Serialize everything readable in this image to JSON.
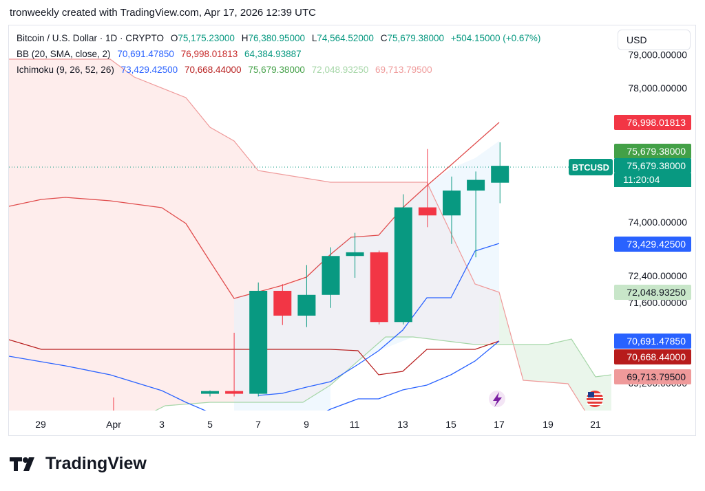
{
  "caption": "tronweekly created with TradingView.com, Apr 17, 2026 12:39 UTC",
  "brand": "TradingView",
  "currency_button": "USD",
  "legend": {
    "symbol": "Bitcoin / U.S. Dollar · 1D · CRYPTO",
    "open_label": "O",
    "open": "75,175.23000",
    "high_label": "H",
    "high": "76,380.95000",
    "low_label": "L",
    "low": "74,564.52000",
    "close_label": "C",
    "close": "75,679.38000",
    "change": "+504.15000 (+0.67%)",
    "bb_label": "BB (20, SMA, close, 2)",
    "bb_basis": "70,691.47850",
    "bb_upper": "76,998.01813",
    "bb_lower": "64,384.93887",
    "ichi_label": "Ichimoku (9, 26, 52, 26)",
    "ichi_conv": "73,429.42500",
    "ichi_base": "70,668.44000",
    "ichi_lag": "75,679.38000",
    "ichi_spanA": "72,048.93250",
    "ichi_spanB": "69,713.79500"
  },
  "colors": {
    "up": "#089981",
    "down": "#f23645",
    "bb_upper": "#e04c4c",
    "bb_basis": "#c2185b",
    "bb_lower": "#2962ff",
    "conv": "#2962ff",
    "base": "#b71c1c",
    "spanA": "#a5d6a7",
    "spanB": "#ef9a9a",
    "cloud_bear": "#fde7e5",
    "cloud_bull": "#e8f5e9"
  },
  "chart_data": {
    "type": "candlestick",
    "symbol_tag": "BTCUSD",
    "countdown": "11:20:04",
    "x_tick_labels": [
      "29",
      "Apr",
      "3",
      "5",
      "7",
      "9",
      "11",
      "13",
      "15",
      "17",
      "19",
      "21"
    ],
    "y_tick_labels": [
      "79,000.00000",
      "78,000.00000",
      "74,000.00000",
      "72,400.00000",
      "71,600.00000",
      "69,200.00000"
    ],
    "y_tick_values": [
      79000,
      78000,
      74000,
      72400,
      71600,
      69200
    ],
    "price_tags": [
      {
        "label": "76,998.01813",
        "value": 76998.01813,
        "color": "#f23645"
      },
      {
        "label": "75,679.38000",
        "value": 76000,
        "color": "#43a047"
      },
      {
        "label": "75,679.38000",
        "value": 75679.38,
        "color": "#089981"
      },
      {
        "label": "73,429.42500",
        "value": 73429.425,
        "color": "#2962ff"
      },
      {
        "label": "72,048.93250",
        "value": 72048.9325,
        "color": "#c8e6c9"
      },
      {
        "label": "70,691.47850",
        "value": 70691.4785,
        "color": "#2962ff"
      },
      {
        "label": "70,668.44000",
        "value": 70668.44,
        "color": "#b71c1c"
      },
      {
        "label": "69,713.79500",
        "value": 69713.795,
        "color": "#ef9a9a"
      }
    ],
    "candles": [
      {
        "date": "Apr 5",
        "open": 68880,
        "high": 68980,
        "low": 68800,
        "close": 68960
      },
      {
        "date": "Apr 6",
        "open": 68960,
        "high": 70700,
        "low": 68800,
        "close": 68880
      },
      {
        "date": "Apr 7",
        "open": 68880,
        "high": 72200,
        "low": 68800,
        "close": 71950
      },
      {
        "date": "Apr 8",
        "open": 71950,
        "high": 72150,
        "low": 70930,
        "close": 71210
      },
      {
        "date": "Apr 9",
        "open": 71210,
        "high": 72720,
        "low": 70870,
        "close": 71830
      },
      {
        "date": "Apr 10",
        "open": 71830,
        "high": 73250,
        "low": 71440,
        "close": 72990
      },
      {
        "date": "Apr 11",
        "open": 72990,
        "high": 73680,
        "low": 72340,
        "close": 73100
      },
      {
        "date": "Apr 12",
        "open": 73100,
        "high": 73150,
        "low": 70950,
        "close": 71020
      },
      {
        "date": "Apr 13",
        "open": 71020,
        "high": 74830,
        "low": 70950,
        "close": 74440
      },
      {
        "date": "Apr 14",
        "open": 74440,
        "high": 76180,
        "low": 73850,
        "close": 74200
      },
      {
        "date": "Apr 15",
        "open": 74200,
        "high": 75360,
        "low": 73350,
        "close": 74940
      },
      {
        "date": "Apr 16",
        "open": 74940,
        "high": 75510,
        "low": 72950,
        "close": 75260
      },
      {
        "date": "Apr 17",
        "open": 75175.23,
        "high": 76380.95,
        "low": 74564.52,
        "close": 75679.38
      }
    ]
  }
}
